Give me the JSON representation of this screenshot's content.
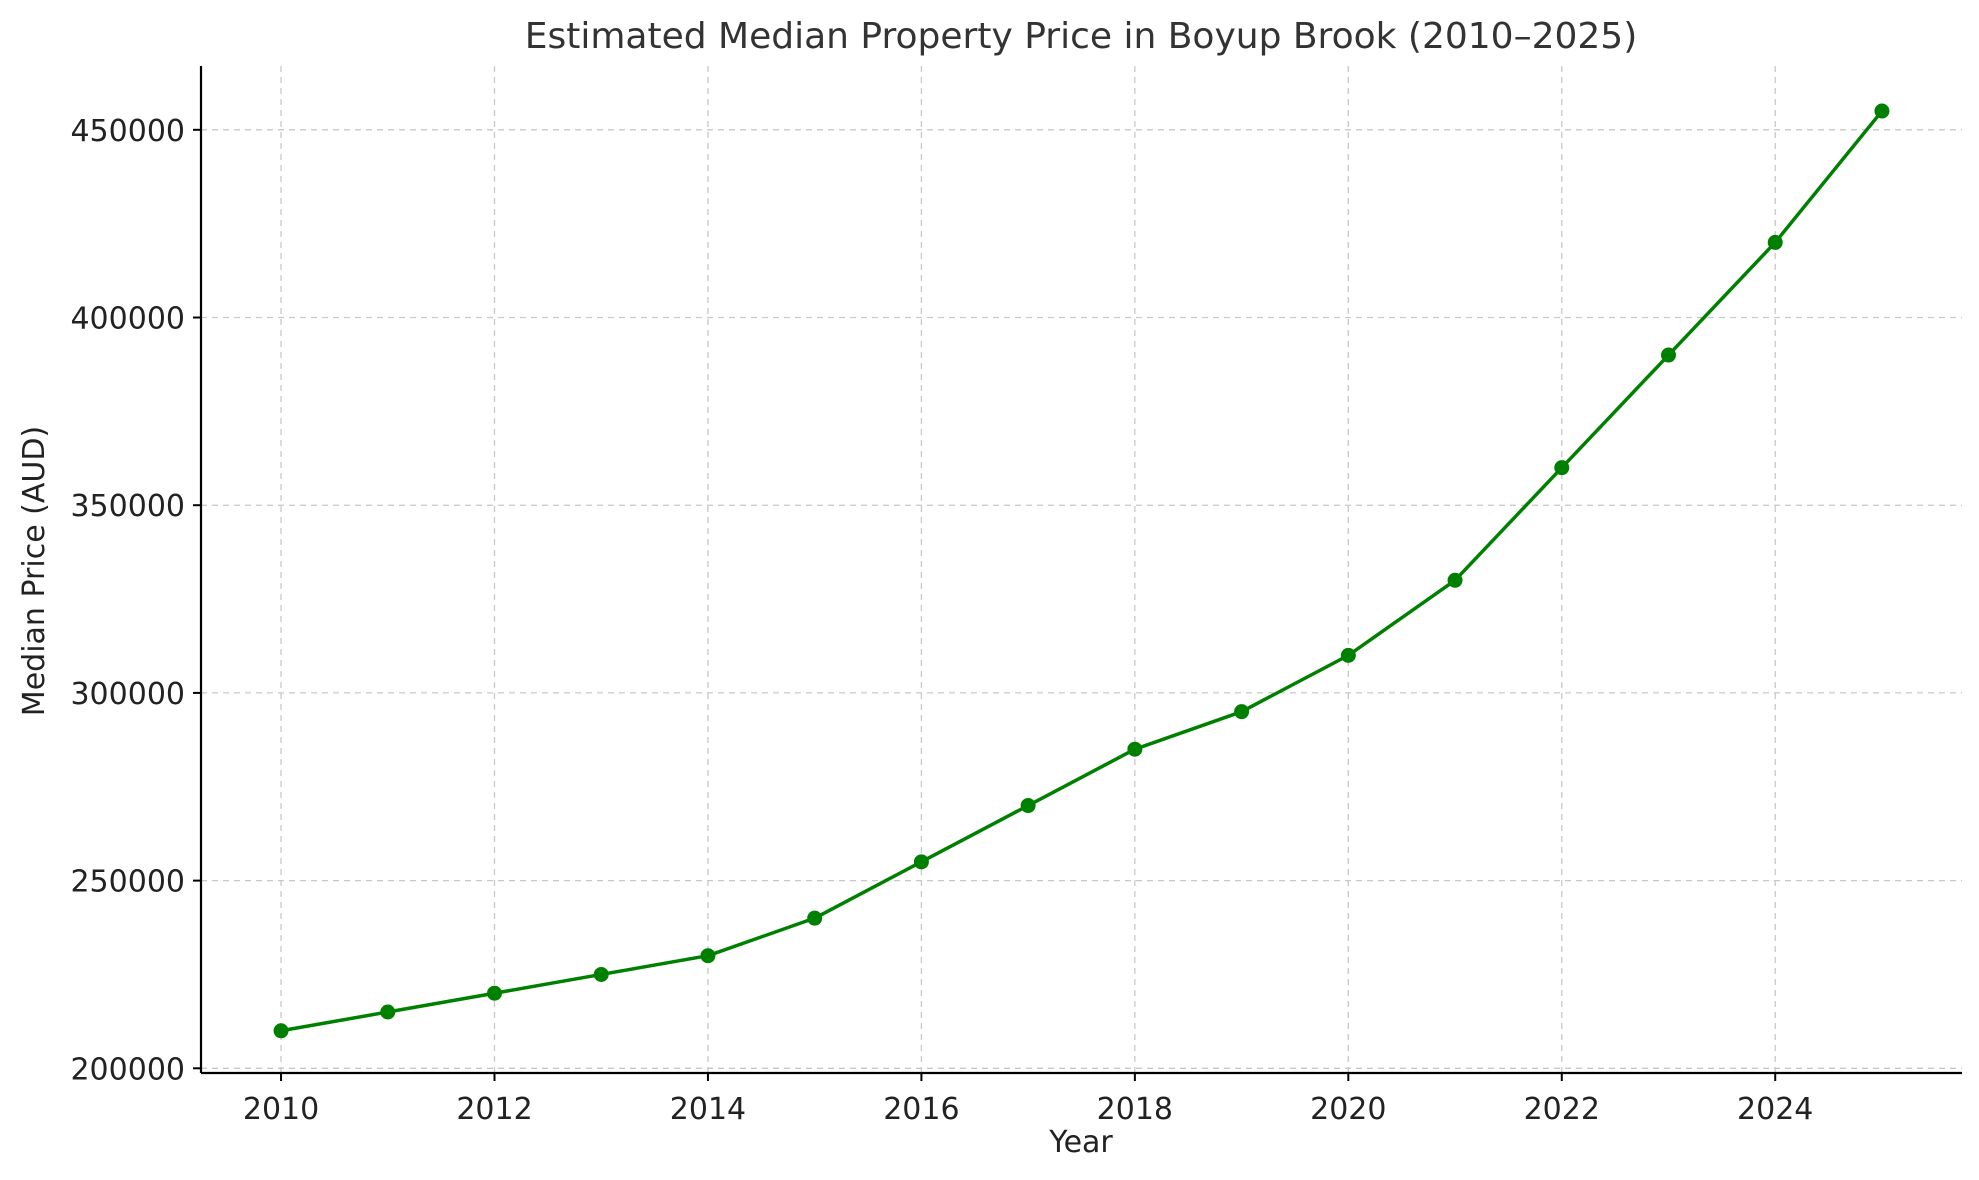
{
  "chart_data": {
    "type": "line",
    "title": "Estimated Median Property Price in Boyup Brook (2010–2025)",
    "xlabel": "Year",
    "ylabel": "Median Price (AUD)",
    "x": [
      2010,
      2011,
      2012,
      2013,
      2014,
      2015,
      2016,
      2017,
      2018,
      2019,
      2020,
      2021,
      2022,
      2023,
      2024,
      2025
    ],
    "series": [
      {
        "name": "Median Price",
        "color": "#008000",
        "values": [
          210000,
          215000,
          220000,
          225000,
          230000,
          240000,
          255000,
          270000,
          285000,
          295000,
          310000,
          330000,
          360000,
          390000,
          420000,
          455000
        ]
      }
    ],
    "xlim": [
      2009.25,
      2025.75
    ],
    "ylim": [
      198750,
      467000
    ],
    "xticks": [
      2010,
      2012,
      2014,
      2016,
      2018,
      2020,
      2022,
      2024
    ],
    "xtick_labels": [
      "2010",
      "2012",
      "2014",
      "2016",
      "2018",
      "2020",
      "2022",
      "2024"
    ],
    "yticks": [
      200000,
      250000,
      300000,
      350000,
      400000,
      450000
    ],
    "ytick_labels": [
      "200000",
      "250000",
      "300000",
      "350000",
      "400000",
      "450000"
    ],
    "grid": true,
    "marker": "circle"
  }
}
